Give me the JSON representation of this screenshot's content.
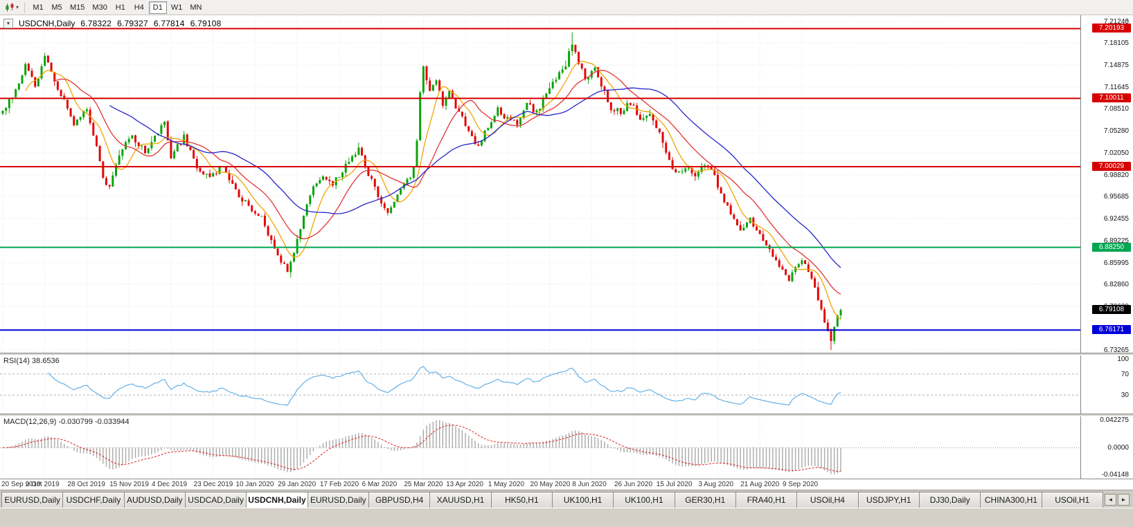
{
  "toolbar": {
    "timeframes": [
      "M1",
      "M5",
      "M15",
      "M30",
      "H1",
      "H4",
      "D1",
      "W1",
      "MN"
    ],
    "active_timeframe": "D1"
  },
  "chart": {
    "symbol_label": "USDCNH,Daily",
    "collapse_icon": "▼",
    "ohlc": {
      "open": "6.78322",
      "high": "6.79327",
      "low": "6.77814",
      "close": "6.79108"
    },
    "price_axis": [
      "7.21240",
      "7.18105",
      "7.14875",
      "7.11645",
      "7.08510",
      "7.05280",
      "7.02050",
      "6.98820",
      "6.95685",
      "6.92455",
      "6.89225",
      "6.85995",
      "6.82860",
      "6.79630",
      "6.76400",
      "6.73265"
    ],
    "levels": [
      {
        "name": "resistance-upper",
        "label": "7.20193",
        "value": 7.20193,
        "color": "#d60000"
      },
      {
        "name": "resistance-mid",
        "label": "7.10011",
        "value": 7.10011,
        "color": "#d60000"
      },
      {
        "name": "resistance-lower",
        "label": "7.00029",
        "value": 7.00029,
        "color": "#d60000"
      },
      {
        "name": "support-green",
        "label": "6.88250",
        "value": 6.8825,
        "color": "#00a651"
      },
      {
        "name": "support-blue",
        "label": "6.76171",
        "value": 6.76171,
        "color": "#0000d8"
      }
    ],
    "current_price": {
      "label": "6.79108",
      "value": 6.79108
    },
    "dates": [
      "20 Sep 2019",
      "9 Oct 2019",
      "28 Oct 2019",
      "15 Nov 2019",
      "4 Dec 2019",
      "23 Dec 2019",
      "10 Jan 2020",
      "29 Jan 2020",
      "17 Feb 2020",
      "6 Mar 2020",
      "25 Mar 2020",
      "13 Apr 2020",
      "1 May 2020",
      "20 May 2020",
      "8 Jun 2020",
      "26 Jun 2020",
      "15 Jul 2020",
      "3 Aug 2020",
      "21 Aug 2020",
      "9 Sep 2020"
    ]
  },
  "rsi": {
    "label": "RSI(14) 38.6536",
    "period": 14,
    "value": 38.6536,
    "levels": [
      70,
      30
    ],
    "axis": [
      {
        "label": "100",
        "value": 100
      },
      {
        "label": "70",
        "value": 70
      },
      {
        "label": "30",
        "value": 30
      }
    ]
  },
  "macd": {
    "label": "MACD(12,26,9) -0.030799 -0.033944",
    "fast": 12,
    "slow": 26,
    "signal": 9,
    "last_main": -0.030799,
    "last_signal": -0.033944,
    "scale_max": 0.042275,
    "scale_min": -0.04148,
    "axis": [
      {
        "label": "0.042275",
        "value": 0.042275
      },
      {
        "label": "0.0000",
        "value": 0
      },
      {
        "label": "-0.04148",
        "value": -0.04148
      }
    ]
  },
  "tabs": {
    "items": [
      "EURUSD,Daily",
      "USDCHF,Daily",
      "AUDUSD,Daily",
      "USDCAD,Daily",
      "USDCNH,Daily",
      "EURUSD,Daily",
      "GBPUSD,H4",
      "XAUUSD,H1",
      "HK50,H1",
      "UK100,H1",
      "UK100,H1",
      "GER30,H1",
      "FRA40,H1",
      "USOil,H4",
      "USDJPY,H1",
      "DJ30,Daily",
      "CHINA300,H1",
      "USOil,H1"
    ],
    "active_index": 4,
    "scroll_left": "◄",
    "scroll_right": "►"
  },
  "colors": {
    "up": "#0aa30a",
    "down": "#e00707",
    "ma_fast": "#efa500",
    "ma_mid": "#e03434",
    "ma_slow": "#2424cc",
    "rsi": "#58aae6",
    "macd_hist": "#a8a8a8",
    "macd_signal": "#dd2020",
    "grid": "#e5e5e5",
    "level_red": "#d60000",
    "level_green": "#00a651",
    "level_blue": "#0000d8"
  },
  "chart_data": {
    "type": "candlestick",
    "symbol": "USDCNH",
    "timeframe": "Daily",
    "num_candles": 260,
    "price_axis_range": {
      "top": 7.2124,
      "bottom": 6.73265
    },
    "last_ohlc": {
      "open": 6.78322,
      "high": 6.79327,
      "low": 6.77814,
      "close": 6.79108
    },
    "horizontal_levels": [
      7.20193,
      7.10011,
      7.00029,
      6.8825,
      6.76171
    ],
    "anchors": [
      [
        0.0,
        7.078
      ],
      [
        0.012,
        7.105
      ],
      [
        0.027,
        7.148
      ],
      [
        0.039,
        7.118
      ],
      [
        0.05,
        7.165
      ],
      [
        0.062,
        7.125
      ],
      [
        0.085,
        7.065
      ],
      [
        0.1,
        7.082
      ],
      [
        0.112,
        7.03
      ],
      [
        0.12,
        6.985
      ],
      [
        0.127,
        6.966
      ],
      [
        0.139,
        7.018
      ],
      [
        0.154,
        7.045
      ],
      [
        0.17,
        7.022
      ],
      [
        0.193,
        7.068
      ],
      [
        0.201,
        7.015
      ],
      [
        0.216,
        7.044
      ],
      [
        0.232,
        6.998
      ],
      [
        0.247,
        6.986
      ],
      [
        0.263,
        7.0
      ],
      [
        0.278,
        6.966
      ],
      [
        0.293,
        6.942
      ],
      [
        0.309,
        6.926
      ],
      [
        0.324,
        6.878
      ],
      [
        0.34,
        6.848
      ],
      [
        0.347,
        6.872
      ],
      [
        0.359,
        6.93
      ],
      [
        0.371,
        6.97
      ],
      [
        0.382,
        6.99
      ],
      [
        0.394,
        6.976
      ],
      [
        0.409,
        7.0
      ],
      [
        0.425,
        7.026
      ],
      [
        0.436,
        6.992
      ],
      [
        0.448,
        6.958
      ],
      [
        0.46,
        6.932
      ],
      [
        0.471,
        6.96
      ],
      [
        0.483,
        6.98
      ],
      [
        0.49,
        6.996
      ],
      [
        0.494,
        7.03
      ],
      [
        0.498,
        7.105
      ],
      [
        0.502,
        7.148
      ],
      [
        0.51,
        7.105
      ],
      [
        0.517,
        7.126
      ],
      [
        0.525,
        7.092
      ],
      [
        0.533,
        7.11
      ],
      [
        0.544,
        7.08
      ],
      [
        0.556,
        7.052
      ],
      [
        0.568,
        7.028
      ],
      [
        0.579,
        7.06
      ],
      [
        0.591,
        7.086
      ],
      [
        0.602,
        7.07
      ],
      [
        0.614,
        7.062
      ],
      [
        0.625,
        7.092
      ],
      [
        0.637,
        7.08
      ],
      [
        0.648,
        7.106
      ],
      [
        0.66,
        7.126
      ],
      [
        0.672,
        7.15
      ],
      [
        0.68,
        7.183
      ],
      [
        0.687,
        7.152
      ],
      [
        0.695,
        7.13
      ],
      [
        0.707,
        7.142
      ],
      [
        0.718,
        7.11
      ],
      [
        0.726,
        7.086
      ],
      [
        0.737,
        7.08
      ],
      [
        0.749,
        7.094
      ],
      [
        0.761,
        7.07
      ],
      [
        0.772,
        7.074
      ],
      [
        0.78,
        7.06
      ],
      [
        0.792,
        7.022
      ],
      [
        0.803,
        6.99
      ],
      [
        0.815,
        7.0
      ],
      [
        0.826,
        6.99
      ],
      [
        0.838,
        7.004
      ],
      [
        0.849,
        6.99
      ],
      [
        0.857,
        6.96
      ],
      [
        0.869,
        6.93
      ],
      [
        0.88,
        6.91
      ],
      [
        0.892,
        6.924
      ],
      [
        0.903,
        6.9
      ],
      [
        0.915,
        6.88
      ],
      [
        0.927,
        6.854
      ],
      [
        0.938,
        6.834
      ],
      [
        0.946,
        6.85
      ],
      [
        0.954,
        6.864
      ],
      [
        0.961,
        6.848
      ],
      [
        0.969,
        6.82
      ],
      [
        0.977,
        6.79
      ],
      [
        0.985,
        6.756
      ],
      [
        0.988,
        6.742
      ],
      [
        0.992,
        6.766
      ],
      [
        0.996,
        6.78
      ],
      [
        1.0,
        6.791
      ]
    ],
    "key_candles": [
      {
        "frac": 0.68,
        "high": 7.1965
      },
      {
        "frac": 0.988,
        "low": 6.7327
      },
      {
        "frac": 1.0,
        "open": 6.78322,
        "high": 6.79327,
        "low": 6.77814,
        "close": 6.79108
      }
    ],
    "moving_averages": [
      {
        "name": "ma-fast",
        "period": 8,
        "color": "#efa500"
      },
      {
        "name": "ma-medium",
        "period": 17,
        "color": "#e03434"
      },
      {
        "name": "ma-slow",
        "period": 34,
        "color": "#2424cc"
      }
    ],
    "indicators": {
      "rsi": {
        "period": 14,
        "last": 38.6536
      },
      "macd": {
        "fast": 12,
        "slow": 26,
        "signal": 9,
        "last_main": -0.030799,
        "last_signal": -0.033944
      }
    }
  }
}
